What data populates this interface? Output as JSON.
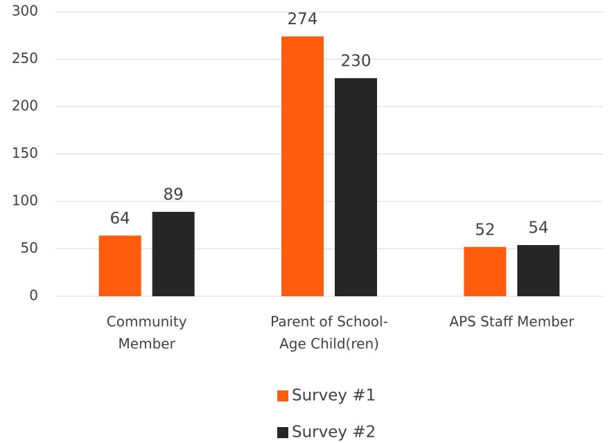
{
  "chart_data": {
    "type": "bar",
    "categories": [
      [
        "Community",
        "Member"
      ],
      [
        "Parent of School-",
        "Age Child(ren)"
      ],
      [
        "APS Staff Member"
      ]
    ],
    "series": [
      {
        "name": "Survey #1",
        "color": "#fd5d0d",
        "values": [
          64,
          274,
          52
        ]
      },
      {
        "name": "Survey #2",
        "color": "#262626",
        "values": [
          89,
          230,
          54
        ]
      }
    ],
    "ylim": [
      0,
      300
    ],
    "yticks": [
      0,
      50,
      100,
      150,
      200,
      250,
      300
    ],
    "grid": true
  }
}
